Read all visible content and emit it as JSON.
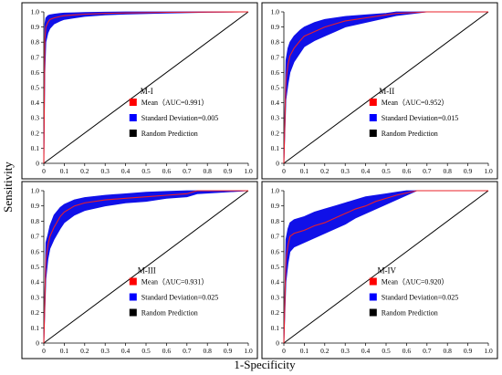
{
  "figure": {
    "ylabel": "Sensitivity",
    "xlabel": "1-Specificity"
  },
  "colors": {
    "mean": "#e8202a",
    "std_band": "#1010e8",
    "random": "#000000",
    "legend_mean_swatch": "#ff0000",
    "legend_std_swatch": "#0000ff",
    "legend_random_swatch": "#000000"
  },
  "chart_data": [
    {
      "type": "line",
      "panel_label": "M-I",
      "xlim": [
        0,
        1
      ],
      "ylim": [
        0,
        1
      ],
      "xticks": [
        "0",
        "0.1",
        "0.2",
        "0.3",
        "0.4",
        "0.5",
        "0.6",
        "0.7",
        "0.8",
        "0.9",
        "1.0"
      ],
      "yticks": [
        "0",
        "0.1",
        "0.2",
        "0.3",
        "0.4",
        "0.5",
        "0.6",
        "0.7",
        "0.8",
        "0.9",
        "1.0"
      ],
      "legend": [
        "Mean（AUC=0.991）",
        "Standard Deviation=0.005",
        "Random Prediction"
      ],
      "series": [
        {
          "x": [
            0,
            0.005,
            0.01,
            0.02,
            0.03,
            0.05,
            0.08,
            0.1,
            0.15,
            0.2,
            0.3,
            0.4,
            0.6,
            0.8,
            1.0
          ],
          "y": [
            0,
            0.82,
            0.9,
            0.93,
            0.95,
            0.96,
            0.97,
            0.975,
            0.98,
            0.985,
            0.99,
            0.993,
            0.997,
            0.999,
            1.0
          ]
        },
        {
          "x": [
            0,
            0.005,
            0.01,
            0.02,
            0.03,
            0.05,
            0.08,
            0.1,
            0.15,
            0.2,
            0.3,
            0.4,
            0.6,
            0.8,
            1.0
          ],
          "y": [
            0,
            0.92,
            0.96,
            0.975,
            0.98,
            0.985,
            0.99,
            0.992,
            0.994,
            0.996,
            0.998,
            1.0,
            1.0,
            1.0,
            1.0
          ]
        },
        {
          "x": [
            0,
            0.005,
            0.01,
            0.02,
            0.03,
            0.05,
            0.08,
            0.1,
            0.15,
            0.2,
            0.3,
            0.4,
            0.6,
            0.8,
            1.0
          ],
          "y": [
            0,
            0.6,
            0.8,
            0.86,
            0.89,
            0.92,
            0.94,
            0.95,
            0.96,
            0.97,
            0.98,
            0.985,
            0.992,
            0.997,
            1.0
          ]
        },
        {
          "x": [
            0,
            1
          ],
          "y": [
            0,
            1
          ]
        }
      ]
    },
    {
      "type": "line",
      "panel_label": "M-II",
      "xlim": [
        0,
        1
      ],
      "ylim": [
        0,
        1
      ],
      "xticks": [
        "0",
        "0.1",
        "0.2",
        "0.3",
        "0.4",
        "0.5",
        "0.6",
        "0.7",
        "0.8",
        "0.9",
        "1.0"
      ],
      "yticks": [
        "0",
        "0.1",
        "0.2",
        "0.3",
        "0.4",
        "0.5",
        "0.6",
        "0.7",
        "0.8",
        "0.9",
        "1.0"
      ],
      "legend": [
        "Mean（AUC=0.952）",
        "Standard Deviation=0.015",
        "Random Prediction"
      ],
      "series": [
        {
          "x": [
            0,
            0.01,
            0.02,
            0.03,
            0.05,
            0.08,
            0.1,
            0.15,
            0.2,
            0.25,
            0.3,
            0.4,
            0.5,
            0.55,
            0.7,
            1.0
          ],
          "y": [
            0,
            0.55,
            0.65,
            0.71,
            0.76,
            0.81,
            0.84,
            0.87,
            0.9,
            0.92,
            0.94,
            0.96,
            0.98,
            0.99,
            1.0,
            1.0
          ]
        },
        {
          "x": [
            0,
            0.01,
            0.02,
            0.03,
            0.05,
            0.08,
            0.1,
            0.15,
            0.2,
            0.25,
            0.3,
            0.4,
            0.5,
            0.55,
            0.7,
            1.0
          ],
          "y": [
            0,
            0.68,
            0.76,
            0.8,
            0.84,
            0.88,
            0.9,
            0.93,
            0.95,
            0.96,
            0.97,
            0.98,
            0.99,
            1.0,
            1.0,
            1.0
          ]
        },
        {
          "x": [
            0,
            0.01,
            0.02,
            0.03,
            0.05,
            0.08,
            0.1,
            0.15,
            0.2,
            0.25,
            0.3,
            0.4,
            0.5,
            0.55,
            0.7,
            1.0
          ],
          "y": [
            0,
            0.42,
            0.52,
            0.6,
            0.67,
            0.73,
            0.77,
            0.81,
            0.84,
            0.87,
            0.9,
            0.93,
            0.96,
            0.975,
            1.0,
            1.0
          ]
        },
        {
          "x": [
            0,
            1
          ],
          "y": [
            0,
            1
          ]
        }
      ]
    },
    {
      "type": "line",
      "panel_label": "M-III",
      "xlim": [
        0,
        1
      ],
      "ylim": [
        0,
        1
      ],
      "xticks": [
        "0",
        "0.1",
        "0.2",
        "0.3",
        "0.4",
        "0.5",
        "0.6",
        "0.7",
        "0.8",
        "0.9",
        "1.0"
      ],
      "yticks": [
        "0",
        "0.1",
        "0.2",
        "0.3",
        "0.4",
        "0.5",
        "0.6",
        "0.7",
        "0.8",
        "0.9",
        "1.0"
      ],
      "legend": [
        "Mean（AUC=0.931）",
        "Standard Deviation=0.025",
        "Random Prediction"
      ],
      "series": [
        {
          "x": [
            0,
            0.01,
            0.02,
            0.03,
            0.05,
            0.08,
            0.1,
            0.15,
            0.2,
            0.3,
            0.4,
            0.5,
            0.6,
            0.7,
            0.75,
            1.0
          ],
          "y": [
            0,
            0.55,
            0.64,
            0.7,
            0.76,
            0.83,
            0.86,
            0.9,
            0.92,
            0.94,
            0.95,
            0.96,
            0.97,
            0.98,
            1.0,
            1.0
          ]
        },
        {
          "x": [
            0,
            0.01,
            0.02,
            0.03,
            0.05,
            0.08,
            0.1,
            0.15,
            0.2,
            0.3,
            0.4,
            0.5,
            0.6,
            0.7,
            0.75,
            1.0
          ],
          "y": [
            0,
            0.66,
            0.71,
            0.77,
            0.84,
            0.89,
            0.91,
            0.94,
            0.955,
            0.97,
            0.98,
            0.99,
            0.995,
            1.0,
            1.0,
            1.0
          ]
        },
        {
          "x": [
            0,
            0.01,
            0.02,
            0.03,
            0.05,
            0.08,
            0.1,
            0.15,
            0.2,
            0.3,
            0.4,
            0.5,
            0.6,
            0.7,
            0.75,
            1.0
          ],
          "y": [
            0,
            0.42,
            0.55,
            0.62,
            0.68,
            0.75,
            0.79,
            0.84,
            0.87,
            0.9,
            0.92,
            0.93,
            0.95,
            0.96,
            0.98,
            1.0
          ]
        },
        {
          "x": [
            0,
            1
          ],
          "y": [
            0,
            1
          ]
        }
      ]
    },
    {
      "type": "line",
      "panel_label": "M-IV",
      "xlim": [
        0,
        1
      ],
      "ylim": [
        0,
        1
      ],
      "xticks": [
        "0",
        "0.1",
        "0.2",
        "0.3",
        "0.4",
        "0.5",
        "0.6",
        "0.7",
        "0.8",
        "0.9",
        "1.0"
      ],
      "yticks": [
        "0",
        "0.1",
        "0.2",
        "0.3",
        "0.4",
        "0.5",
        "0.6",
        "0.7",
        "0.8",
        "0.9",
        "1.0"
      ],
      "legend": [
        "Mean（AUC=0.920）",
        "Standard Deviation=0.025",
        "Random Prediction"
      ],
      "series": [
        {
          "x": [
            0,
            0.01,
            0.02,
            0.03,
            0.05,
            0.1,
            0.15,
            0.2,
            0.25,
            0.3,
            0.35,
            0.4,
            0.45,
            0.5,
            0.55,
            0.6,
            0.65,
            1.0
          ],
          "y": [
            0,
            0.55,
            0.64,
            0.7,
            0.72,
            0.74,
            0.77,
            0.79,
            0.82,
            0.85,
            0.88,
            0.9,
            0.93,
            0.95,
            0.97,
            0.985,
            1.0,
            1.0
          ]
        },
        {
          "x": [
            0,
            0.01,
            0.02,
            0.03,
            0.05,
            0.1,
            0.15,
            0.2,
            0.25,
            0.3,
            0.35,
            0.4,
            0.45,
            0.5,
            0.55,
            0.6,
            0.65,
            1.0
          ],
          "y": [
            0,
            0.68,
            0.75,
            0.79,
            0.81,
            0.83,
            0.86,
            0.88,
            0.9,
            0.92,
            0.94,
            0.96,
            0.97,
            0.98,
            0.99,
            1.0,
            1.0,
            1.0
          ]
        },
        {
          "x": [
            0,
            0.01,
            0.02,
            0.03,
            0.05,
            0.1,
            0.15,
            0.2,
            0.25,
            0.3,
            0.35,
            0.4,
            0.45,
            0.5,
            0.55,
            0.6,
            0.65,
            1.0
          ],
          "y": [
            0,
            0.4,
            0.52,
            0.6,
            0.63,
            0.66,
            0.69,
            0.72,
            0.75,
            0.78,
            0.82,
            0.85,
            0.88,
            0.91,
            0.94,
            0.97,
            1.0,
            1.0
          ]
        },
        {
          "x": [
            0,
            1
          ],
          "y": [
            0,
            1
          ]
        }
      ]
    }
  ]
}
